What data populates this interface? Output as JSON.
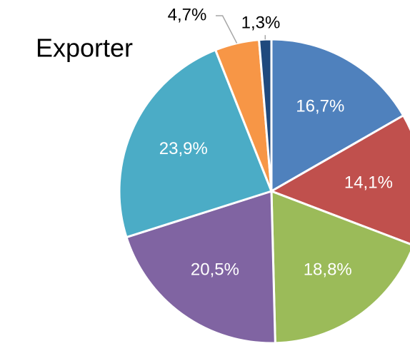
{
  "chart_data": {
    "type": "pie",
    "title": "Exporter",
    "values": [
      16.7,
      14.1,
      18.8,
      20.5,
      23.9,
      4.7,
      1.3
    ],
    "value_labels": [
      "16,7%",
      "14,1%",
      "18,8%",
      "20,5%",
      "23,9%",
      "4,7%",
      "1,3%"
    ],
    "colors": [
      "#4f81bd",
      "#c0504d",
      "#9bbb59",
      "#8064a2",
      "#4bacc6",
      "#f79646",
      "#1f497d"
    ]
  }
}
